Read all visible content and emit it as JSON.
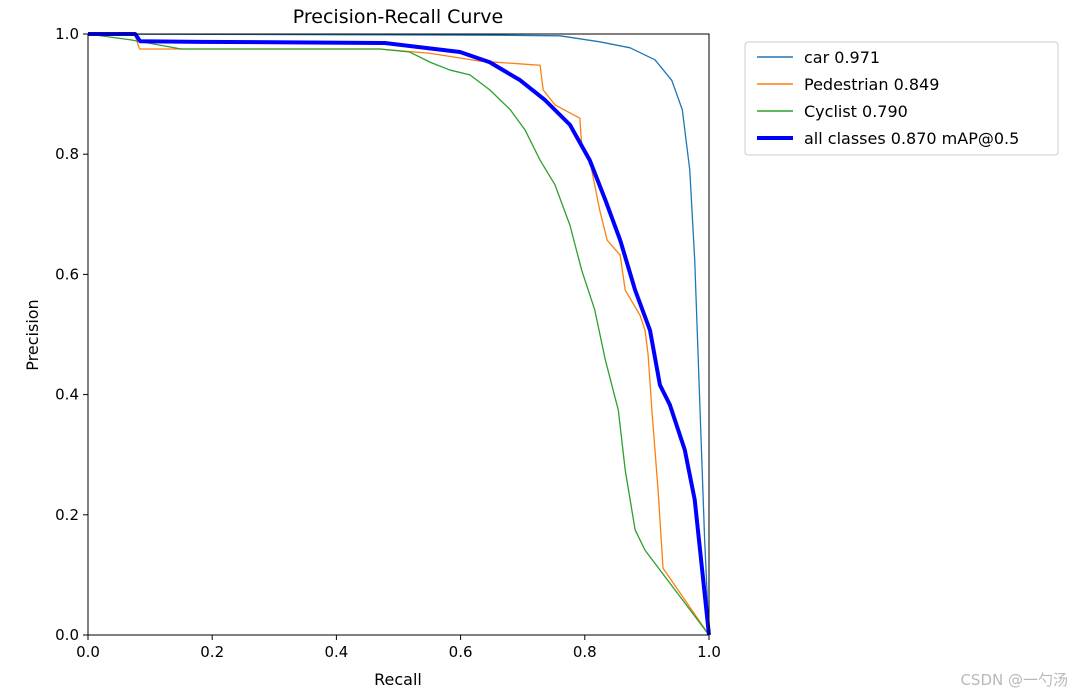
{
  "chart_data": {
    "type": "line",
    "title": "Precision-Recall Curve",
    "xlabel": "Recall",
    "ylabel": "Precision",
    "xlim": [
      0,
      1
    ],
    "ylim": [
      0,
      1
    ],
    "xticks": [
      "0.0",
      "0.2",
      "0.4",
      "0.6",
      "0.8",
      "1.0"
    ],
    "yticks": [
      "0.0",
      "0.2",
      "0.4",
      "0.6",
      "0.8",
      "1.0"
    ],
    "grid": false,
    "legend_placement": "outside-top-right",
    "series": [
      {
        "name": "car 0.971",
        "color": "#1f77b4",
        "width": "thin",
        "points": [
          [
            0,
            1
          ],
          [
            0.66,
            0.998
          ],
          [
            0.76,
            0.997
          ],
          [
            0.824,
            0.987
          ],
          [
            0.873,
            0.977
          ],
          [
            0.913,
            0.957
          ],
          [
            0.94,
            0.923
          ],
          [
            0.957,
            0.874
          ],
          [
            0.969,
            0.774
          ],
          [
            0.977,
            0.624
          ],
          [
            0.985,
            0.391
          ],
          [
            0.993,
            0.158
          ],
          [
            1,
            0
          ]
        ]
      },
      {
        "name": "Pedestrian 0.849",
        "color": "#ff7f0e",
        "width": "thin",
        "points": [
          [
            0,
            1
          ],
          [
            0.075,
            1
          ],
          [
            0.083,
            0.975
          ],
          [
            0.47,
            0.975
          ],
          [
            0.55,
            0.968
          ],
          [
            0.63,
            0.955
          ],
          [
            0.7,
            0.95
          ],
          [
            0.728,
            0.948
          ],
          [
            0.733,
            0.907
          ],
          [
            0.752,
            0.882
          ],
          [
            0.792,
            0.86
          ],
          [
            0.795,
            0.815
          ],
          [
            0.808,
            0.79
          ],
          [
            0.824,
            0.707
          ],
          [
            0.836,
            0.657
          ],
          [
            0.857,
            0.632
          ],
          [
            0.865,
            0.574
          ],
          [
            0.889,
            0.532
          ],
          [
            0.897,
            0.507
          ],
          [
            0.902,
            0.466
          ],
          [
            0.908,
            0.374
          ],
          [
            0.913,
            0.308
          ],
          [
            0.918,
            0.241
          ],
          [
            0.926,
            0.111
          ],
          [
            1,
            0
          ]
        ]
      },
      {
        "name": "Cyclist 0.790",
        "color": "#2ca02c",
        "width": "thin",
        "points": [
          [
            0,
            1
          ],
          [
            0.07,
            0.99
          ],
          [
            0.15,
            0.975
          ],
          [
            0.47,
            0.975
          ],
          [
            0.518,
            0.97
          ],
          [
            0.551,
            0.953
          ],
          [
            0.583,
            0.94
          ],
          [
            0.615,
            0.932
          ],
          [
            0.647,
            0.907
          ],
          [
            0.68,
            0.874
          ],
          [
            0.704,
            0.84
          ],
          [
            0.728,
            0.79
          ],
          [
            0.752,
            0.749
          ],
          [
            0.776,
            0.682
          ],
          [
            0.795,
            0.607
          ],
          [
            0.816,
            0.541
          ],
          [
            0.833,
            0.458
          ],
          [
            0.854,
            0.374
          ],
          [
            0.865,
            0.275
          ],
          [
            0.881,
            0.175
          ],
          [
            0.897,
            0.141
          ],
          [
            1,
            0
          ]
        ]
      },
      {
        "name": "all classes 0.870 mAP@0.5",
        "color": "#0000ff",
        "width": "thick",
        "points": [
          [
            0,
            1
          ],
          [
            0.076,
            1
          ],
          [
            0.084,
            0.988
          ],
          [
            0.18,
            0.987
          ],
          [
            0.478,
            0.985
          ],
          [
            0.535,
            0.978
          ],
          [
            0.599,
            0.97
          ],
          [
            0.647,
            0.953
          ],
          [
            0.696,
            0.923
          ],
          [
            0.736,
            0.89
          ],
          [
            0.776,
            0.849
          ],
          [
            0.808,
            0.79
          ],
          [
            0.833,
            0.724
          ],
          [
            0.857,
            0.657
          ],
          [
            0.881,
            0.574
          ],
          [
            0.905,
            0.507
          ],
          [
            0.921,
            0.416
          ],
          [
            0.937,
            0.383
          ],
          [
            0.961,
            0.308
          ],
          [
            0.977,
            0.225
          ],
          [
            0.989,
            0.108
          ],
          [
            1,
            0
          ]
        ]
      }
    ]
  },
  "watermark": "CSDN @一勺汤"
}
